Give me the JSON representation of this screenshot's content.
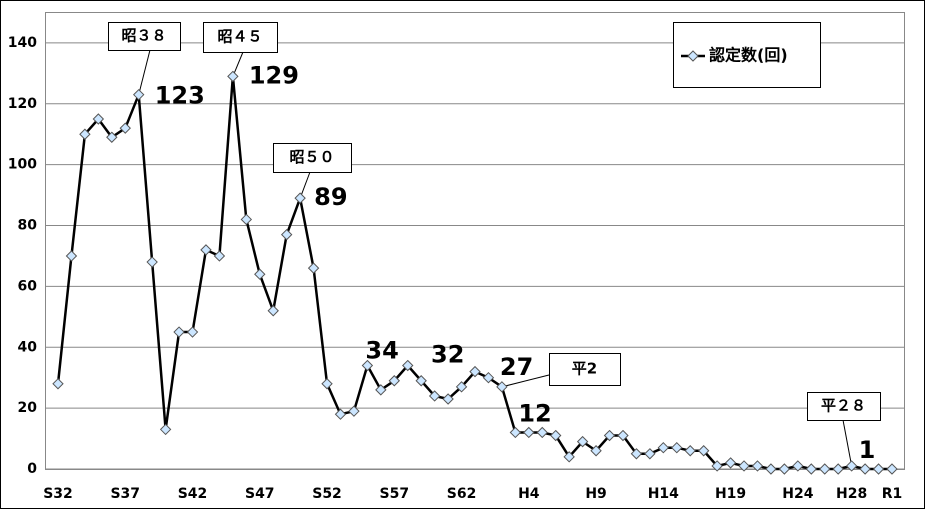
{
  "chart_data": {
    "type": "line",
    "categories": [
      "S32",
      null,
      null,
      null,
      null,
      "S37",
      null,
      null,
      null,
      null,
      "S42",
      null,
      null,
      null,
      null,
      "S47",
      null,
      null,
      null,
      null,
      "S52",
      null,
      null,
      null,
      null,
      "S57",
      null,
      null,
      null,
      null,
      "S62",
      null,
      null,
      null,
      null,
      "H4",
      null,
      null,
      null,
      null,
      "H9",
      null,
      null,
      null,
      null,
      "H14",
      null,
      null,
      null,
      null,
      "H19",
      null,
      null,
      null,
      null,
      "H24",
      null,
      null,
      null,
      "H28",
      null,
      null,
      "R1"
    ],
    "series": [
      {
        "name": "認定数(回)",
        "color": "#000000",
        "marker_color": "#cce6ff",
        "values": [
          28,
          70,
          110,
          115,
          109,
          112,
          123,
          68,
          13,
          45,
          45,
          72,
          70,
          129,
          82,
          64,
          52,
          77,
          89,
          66,
          28,
          18,
          19,
          34,
          26,
          29,
          34,
          29,
          24,
          23,
          27,
          32,
          30,
          27,
          12,
          12,
          12,
          11,
          4,
          9,
          6,
          11,
          11,
          5,
          5,
          7,
          7,
          6,
          6,
          1,
          2,
          1,
          1,
          0,
          0,
          1,
          0,
          0,
          0,
          1,
          0,
          0,
          0
        ],
        "value_labels": [
          null,
          null,
          null,
          null,
          null,
          null,
          "123",
          null,
          null,
          null,
          null,
          null,
          null,
          "129",
          null,
          null,
          null,
          null,
          "89",
          null,
          null,
          null,
          null,
          "34",
          null,
          null,
          null,
          null,
          null,
          null,
          null,
          "32",
          null,
          "27",
          "12",
          null,
          null,
          null,
          null,
          null,
          null,
          null,
          null,
          null,
          null,
          null,
          null,
          null,
          null,
          null,
          null,
          null,
          null,
          null,
          null,
          null,
          null,
          null,
          null,
          "1",
          null,
          null,
          null
        ]
      }
    ],
    "callouts": [
      "昭３８",
      "昭４５",
      "昭５０",
      "平2",
      "平２８"
    ],
    "ylim": [
      0,
      150
    ],
    "yticks": [
      0,
      20,
      40,
      60,
      80,
      100,
      120,
      140
    ],
    "grid": true,
    "legend": "upper right"
  }
}
